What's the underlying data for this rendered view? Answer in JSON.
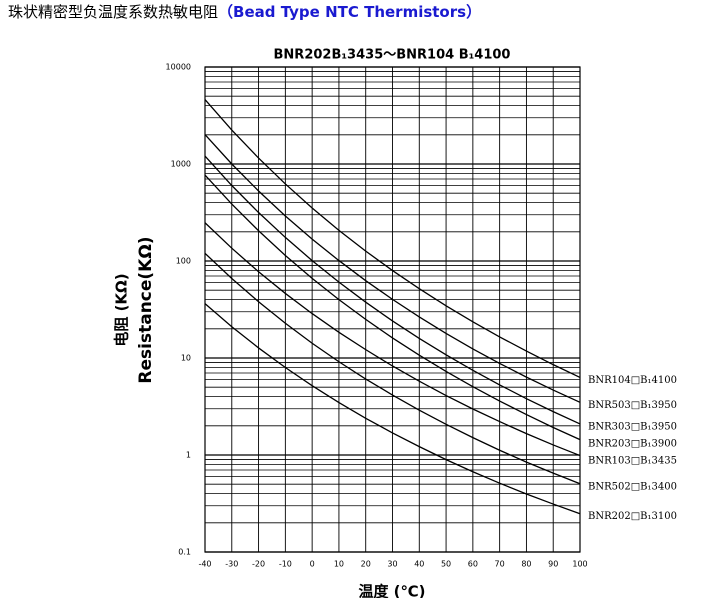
{
  "header": {
    "title": "珠状精密型负温度系数热敏电阻",
    "subtitle": "（Bead Type NTC Thermistors）"
  },
  "chart_data": {
    "type": "line",
    "title": "BNR202B₁3435～BNR104 B₁4100",
    "ylabel_cn": "电阻 (KΩ)",
    "ylabel": "Resistance(KΩ)",
    "xlabel": "温度 (℃)",
    "yscale": "log",
    "grid": true,
    "x": [
      -40,
      -30,
      -20,
      -10,
      0,
      10,
      20,
      30,
      40,
      50,
      60,
      70,
      80,
      90,
      100
    ],
    "xlim": [
      -40,
      100
    ],
    "xticks": [
      -40,
      -30,
      -20,
      -10,
      0,
      10,
      20,
      30,
      40,
      50,
      60,
      70,
      80,
      90,
      100
    ],
    "ylim": [
      0.1,
      10000
    ],
    "yticks": [
      0.1,
      1,
      10,
      100,
      1000,
      10000
    ],
    "series": [
      {
        "name": "BNR104□B₁4100",
        "color": "#000000",
        "values": [
          4620,
          2240,
          1152,
          623,
          352,
          207,
          126.5,
          79.7,
          51.8,
          34.5,
          23.6,
          16.5,
          11.8,
          8.54,
          6.3
        ]
      },
      {
        "name": "BNR503□B₁3950",
        "color": "#000000",
        "values": [
          2010,
          1000,
          527,
          291,
          168,
          101,
          62.7,
          40.2,
          26.5,
          17.9,
          12.4,
          8.8,
          6.35,
          4.67,
          3.49
        ]
      },
      {
        "name": "BNR303□B₁3950",
        "color": "#000000",
        "values": [
          1206,
          600,
          316,
          175,
          101,
          60.6,
          37.6,
          24.1,
          15.9,
          10.8,
          7.47,
          5.28,
          3.81,
          2.8,
          2.09
        ]
      },
      {
        "name": "BNR203□B₁3900",
        "color": "#000000",
        "values": [
          768,
          386,
          205,
          114,
          66.2,
          40,
          25,
          16.1,
          10.7,
          7.27,
          5.06,
          3.6,
          2.61,
          1.92,
          1.44
        ]
      },
      {
        "name": "BNR103□B₁3435",
        "color": "#000000",
        "values": [
          248,
          135.5,
          77.5,
          46.3,
          28.7,
          18.4,
          12.2,
          8.27,
          5.76,
          4.1,
          2.98,
          2.21,
          1.66,
          1.27,
          0.987
        ]
      },
      {
        "name": "BNR502□B₁3400",
        "color": "#000000",
        "values": [
          120,
          66,
          38,
          22.8,
          14.2,
          9.15,
          6.07,
          4.15,
          2.9,
          2.07,
          1.51,
          1.12,
          0.845,
          0.65,
          0.505
        ]
      },
      {
        "name": "BNR202□B₁3100",
        "color": "#000000",
        "values": [
          36.4,
          21,
          12.7,
          7.98,
          5.18,
          3.47,
          2.39,
          1.69,
          1.22,
          0.896,
          0.672,
          0.512,
          0.396,
          0.312,
          0.248
        ]
      }
    ]
  }
}
